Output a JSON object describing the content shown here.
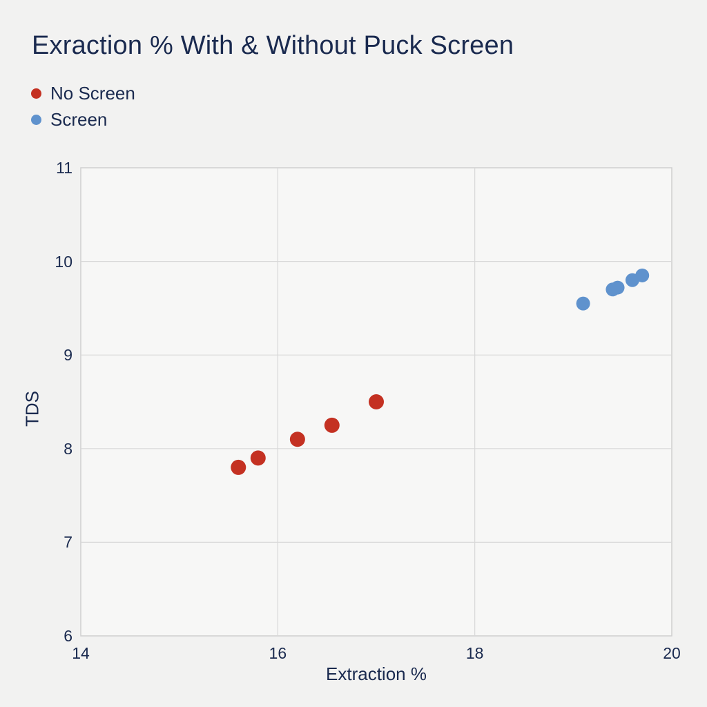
{
  "chart_data": {
    "type": "scatter",
    "title": "Exraction % With & Without Puck Screen",
    "xlabel": "Extraction %",
    "ylabel": "TDS",
    "xlim": [
      14,
      20
    ],
    "ylim": [
      6,
      11
    ],
    "x_ticks": [
      14,
      16,
      18,
      20
    ],
    "y_ticks": [
      6,
      7,
      8,
      9,
      10,
      11
    ],
    "grid": true,
    "legend_position": "top-left",
    "series": [
      {
        "name": "No Screen",
        "color": "#c43122",
        "points": [
          [
            15.6,
            7.8
          ],
          [
            15.8,
            7.9
          ],
          [
            16.2,
            8.1
          ],
          [
            16.55,
            8.25
          ],
          [
            17.0,
            8.5
          ]
        ]
      },
      {
        "name": "Screen",
        "color": "#5f92cd",
        "points": [
          [
            19.1,
            9.55
          ],
          [
            19.4,
            9.7
          ],
          [
            19.45,
            9.72
          ],
          [
            19.6,
            9.8
          ],
          [
            19.7,
            9.85
          ]
        ]
      }
    ],
    "colors": {
      "text": "#1a2a4f",
      "page_background": "#f2f2f1",
      "plot_background": "#f7f7f6",
      "grid": "#d8d8d8",
      "plot_border": "#cfcfcf"
    }
  }
}
